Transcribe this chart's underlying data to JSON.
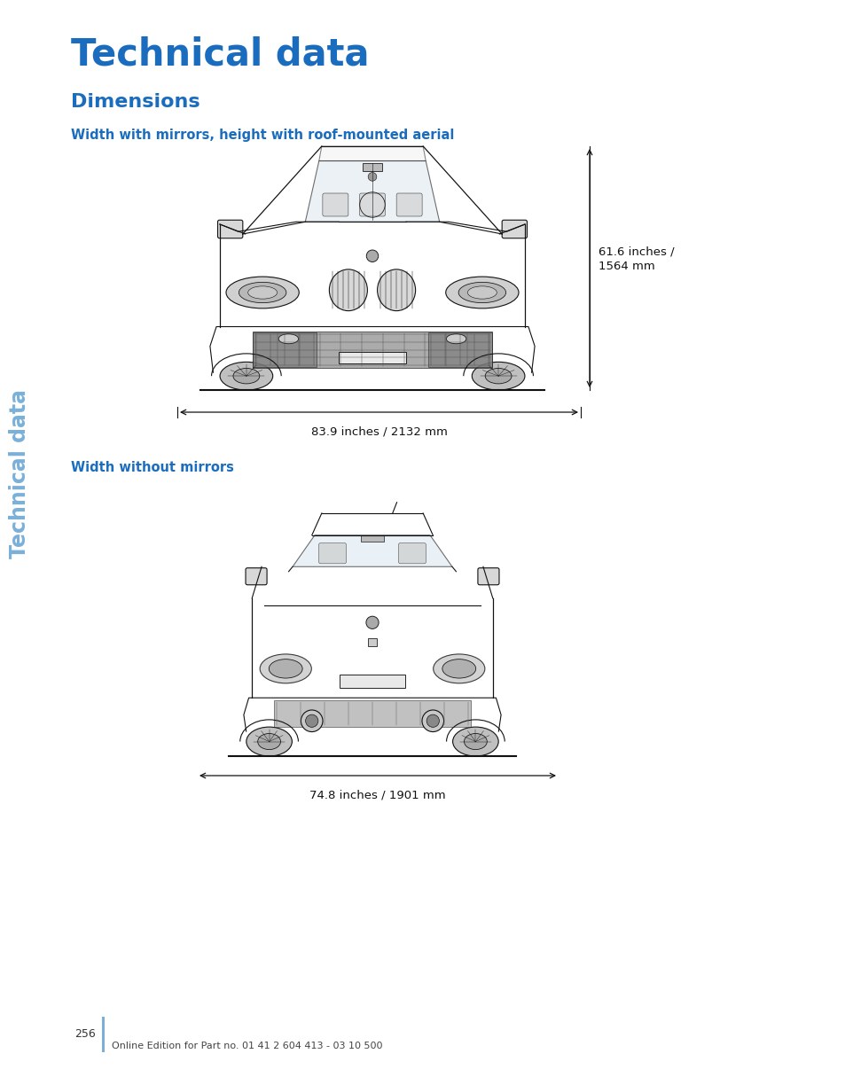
{
  "title": "Technical data",
  "section_title": "Dimensions",
  "subsection1": "Width with mirrors, height with roof-mounted aerial",
  "subsection2": "Width without mirrors",
  "dim1_width": "83.9 inches / 2132 mm",
  "dim1_height_line1": "61.6 inches /",
  "dim1_height_line2": "1564 mm",
  "dim2_width": "74.8 inches / 1901 mm",
  "title_color": "#1a6dbe",
  "section_color": "#1a6dbe",
  "subsection_color": "#1a6dbe",
  "sidebar_text": "Technical data",
  "sidebar_color": "#7ab0d8",
  "page_number": "256",
  "footer_text": "Online Edition for Part no. 01 41 2 604 413 - 03 10 500",
  "bg_color": "#ffffff",
  "car_color": "#111111",
  "car_fill": "#f5f5f5",
  "car_lw": 0.8
}
